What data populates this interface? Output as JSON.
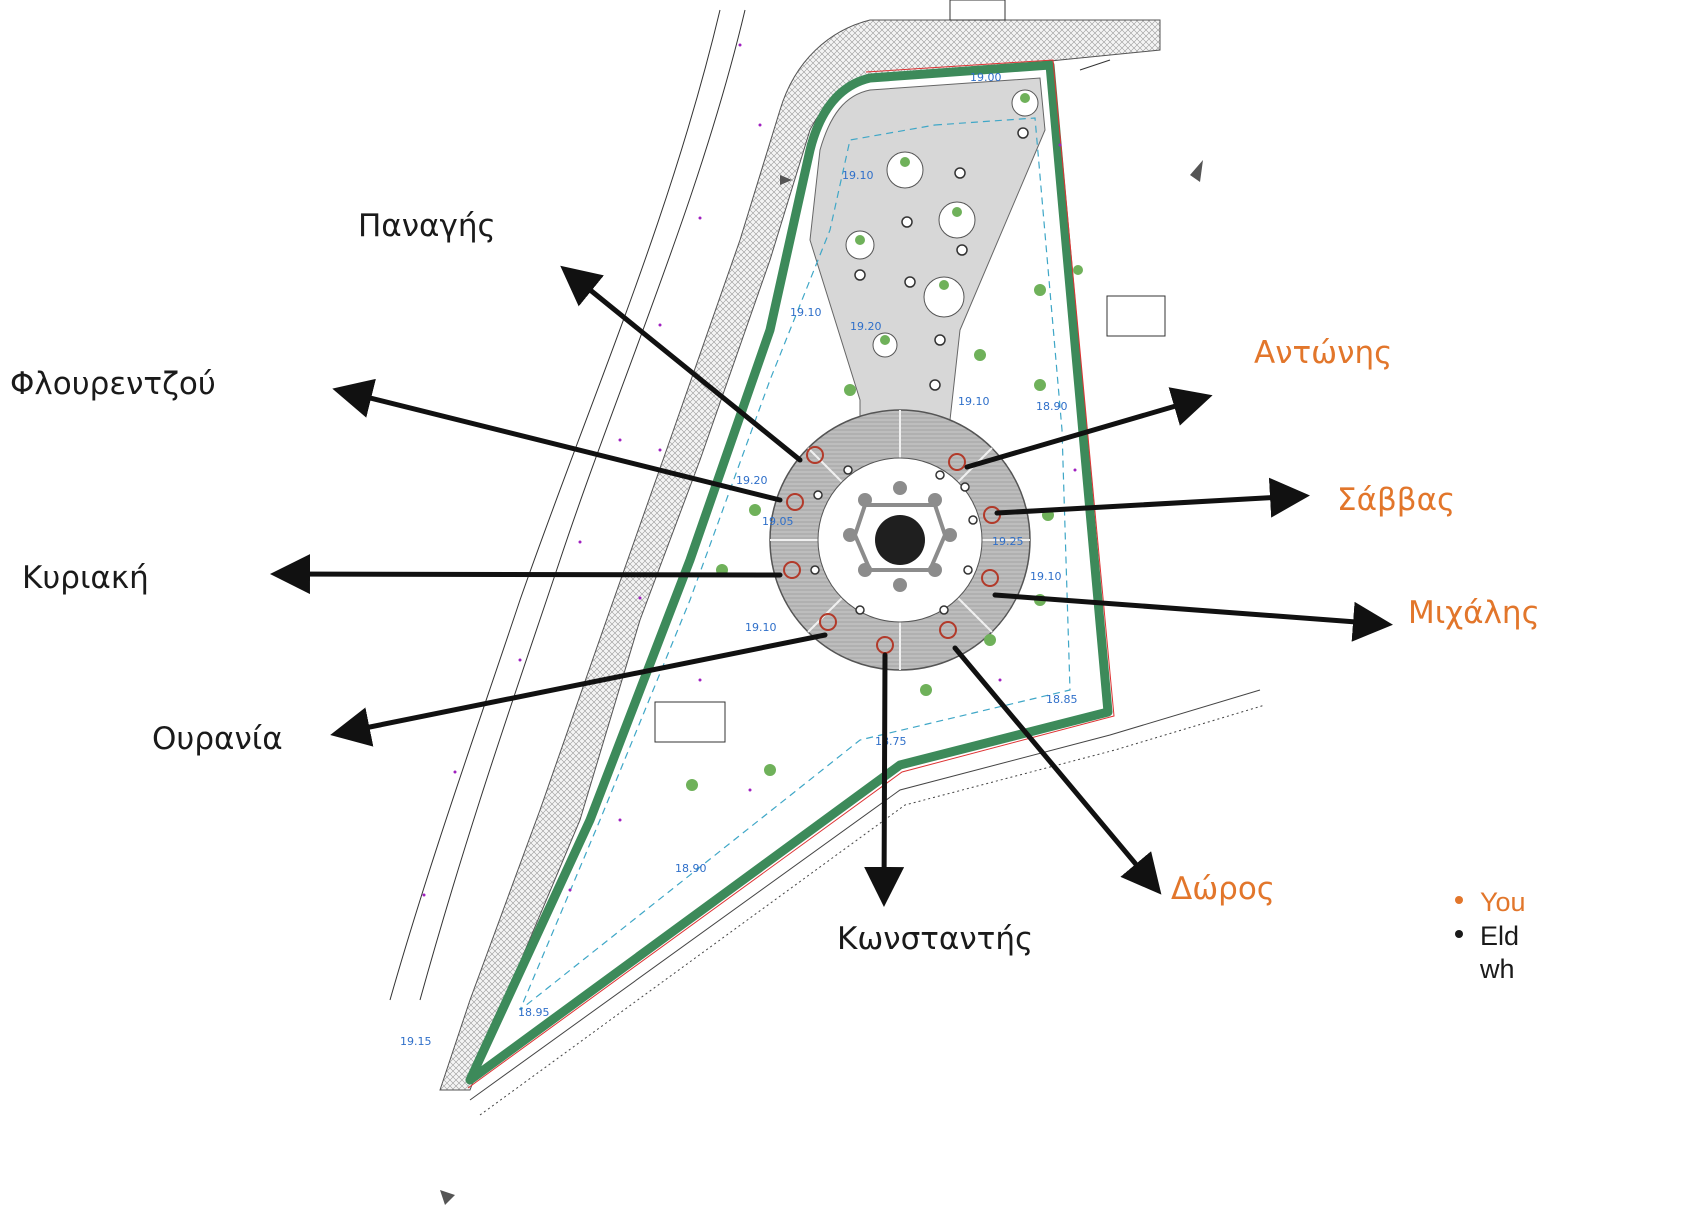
{
  "labels": {
    "panagis": "Παναγής",
    "flourentzou": "Φλουρεντζού",
    "kyriaki": "Κυριακή",
    "ourania": "Ουρανία",
    "konstantis": "Κωνσταντής",
    "doros": "Δώρος",
    "michalis": "Μιχάλης",
    "savvas": "Σάββας",
    "antonis": "Αντώνης"
  },
  "legend": {
    "item1": "You",
    "item2_line1": "Eld",
    "item2_line2": "wh"
  },
  "levels": {
    "l1": "19.00",
    "l2": "19.10",
    "l3": "19.10",
    "l4": "19.20",
    "l5": "19.10",
    "l6": "18.90",
    "l7": "19.20",
    "l8": "19.25",
    "l9": "19.10",
    "l10": "19.10",
    "l11": "18.85",
    "l12": "18.75",
    "l13": "18.90",
    "l14": "18.95",
    "l15": "19.15",
    "l16": "19.05"
  },
  "colors": {
    "young": "#e2762b",
    "elder": "#1a1a1a",
    "boundary_green": "#3d8a5a",
    "level_blue": "#2f6fc9",
    "point_purple": "#a020c0"
  }
}
